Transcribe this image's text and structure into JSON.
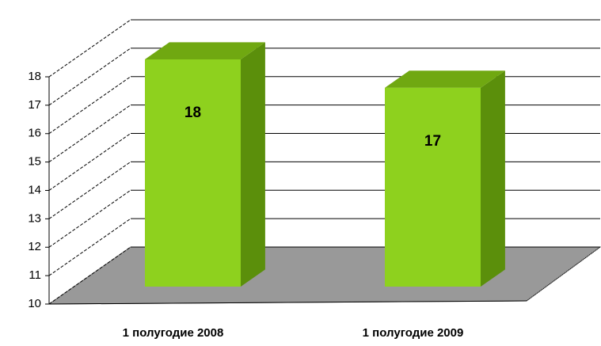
{
  "chart_data": {
    "type": "bar",
    "categories": [
      "1 полугодие 2008",
      "1 полугодие 2009"
    ],
    "values": [
      18,
      17
    ],
    "color": "#8ed11e",
    "ylim": [
      10,
      18
    ],
    "yticks": [
      10,
      11,
      12,
      13,
      14,
      15,
      16,
      17,
      18
    ],
    "grid": true
  }
}
